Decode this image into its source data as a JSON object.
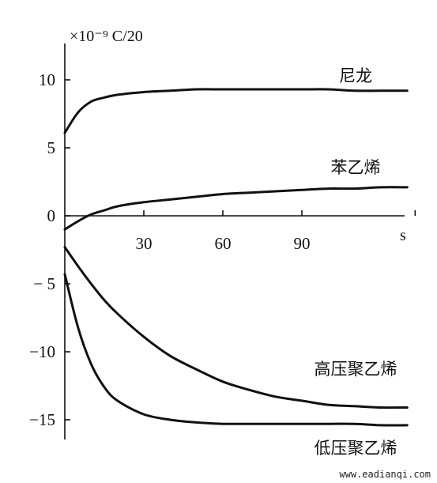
{
  "chart_data": {
    "type": "line",
    "unit_label": "×10⁻⁹ C/20",
    "x_axis_label": "s",
    "xlim": [
      0,
      133
    ],
    "ylim": [
      -16,
      13
    ],
    "x_ticks": [
      {
        "value": 30,
        "label": "30"
      },
      {
        "value": 60,
        "label": "60"
      },
      {
        "value": 90,
        "label": "90"
      }
    ],
    "y_ticks": [
      {
        "value": 10,
        "label": "10"
      },
      {
        "value": 5,
        "label": "5"
      },
      {
        "value": 0,
        "label": "0"
      },
      {
        "value": -5,
        "label": "− 5"
      },
      {
        "value": -10,
        "label": "−10"
      },
      {
        "value": -15,
        "label": "−15"
      }
    ],
    "x": [
      0,
      5,
      10,
      15,
      20,
      30,
      40,
      50,
      60,
      70,
      80,
      90,
      100,
      110,
      120,
      130
    ],
    "series": [
      {
        "name": "尼龙",
        "values": [
          6.1,
          7.6,
          8.4,
          8.7,
          8.9,
          9.1,
          9.2,
          9.3,
          9.3,
          9.3,
          9.3,
          9.3,
          9.3,
          9.2,
          9.2,
          9.2
        ]
      },
      {
        "name": "苯乙烯",
        "values": [
          -1.0,
          -0.4,
          0.1,
          0.4,
          0.7,
          1.0,
          1.2,
          1.4,
          1.6,
          1.7,
          1.8,
          1.9,
          2.0,
          2.0,
          2.1,
          2.1
        ]
      },
      {
        "name": "高压聚乙烯",
        "values": [
          -2.3,
          -3.7,
          -5.0,
          -6.2,
          -7.2,
          -8.9,
          -10.3,
          -11.3,
          -12.2,
          -12.8,
          -13.3,
          -13.6,
          -13.9,
          -14.0,
          -14.1,
          -14.1
        ]
      },
      {
        "name": "低压聚乙烯",
        "values": [
          -4.3,
          -8.2,
          -10.9,
          -12.6,
          -13.6,
          -14.6,
          -15.0,
          -15.2,
          -15.3,
          -15.3,
          -15.3,
          -15.3,
          -15.3,
          -15.3,
          -15.4,
          -15.4
        ]
      }
    ]
  },
  "watermark": "www.eadianqi.com"
}
